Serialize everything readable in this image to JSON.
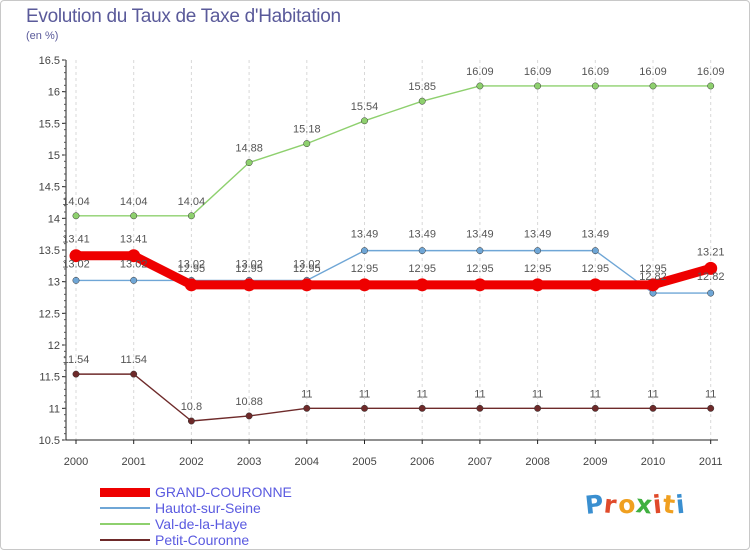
{
  "header": {
    "title": "Evolution du Taux de Taxe d'Habitation",
    "unit": "(en %)"
  },
  "logo": {
    "text": "Proxiti",
    "colors": [
      "#3a8fd0",
      "#e04a2a",
      "#f0a020",
      "#40b040",
      "#e04a2a",
      "#f0a020",
      "#3a8fd0"
    ]
  },
  "chart_data": {
    "type": "line",
    "x": [
      "2000",
      "2001",
      "2002",
      "2003",
      "2004",
      "2005",
      "2006",
      "2007",
      "2008",
      "2009",
      "2010",
      "2011"
    ],
    "ylim": [
      10.5,
      16.5
    ],
    "yticks": [
      "10.5",
      "11",
      "11.5",
      "12",
      "12.5",
      "13",
      "13.5",
      "14",
      "14.5",
      "15",
      "15.5",
      "16",
      "16.5"
    ],
    "grid": "vertical dashed",
    "legend_position": "bottom-left",
    "series": [
      {
        "name": "GRAND-COURONNE",
        "color": "#ee0000",
        "values": [
          13.41,
          13.41,
          12.95,
          12.95,
          12.95,
          12.95,
          12.95,
          12.95,
          12.95,
          12.95,
          12.95,
          13.21
        ],
        "labels": [
          "13.41",
          "13.41",
          "12.95",
          "12.95",
          "12.95",
          "12.95",
          "12.95",
          "12.95",
          "12.95",
          "12.95",
          "12.95",
          "13.21"
        ]
      },
      {
        "name": "Hautot-sur-Seine",
        "color": "#6fa6d6",
        "values": [
          13.02,
          13.02,
          13.02,
          13.02,
          13.02,
          13.49,
          13.49,
          13.49,
          13.49,
          13.49,
          12.82,
          12.82
        ],
        "labels": [
          "13.02",
          "13.02",
          "13.02",
          "13.02",
          "13.02",
          "13.49",
          "13.49",
          "13.49",
          "13.49",
          "13.49",
          "12.82",
          "12.82"
        ]
      },
      {
        "name": "Val-de-la-Haye",
        "color": "#8ed06e",
        "values": [
          14.04,
          14.04,
          14.04,
          14.88,
          15.18,
          15.54,
          15.85,
          16.09,
          16.09,
          16.09,
          16.09,
          16.09
        ],
        "labels": [
          "14.04",
          "14.04",
          "14.04",
          "14.88",
          "15.18",
          "15.54",
          "15.85",
          "16.09",
          "16.09",
          "16.09",
          "16.09",
          "16.09"
        ]
      },
      {
        "name": "Petit-Couronne",
        "color": "#6e2a2a",
        "values": [
          11.54,
          11.54,
          10.8,
          10.88,
          11,
          11,
          11,
          11,
          11,
          11,
          11,
          11
        ],
        "labels": [
          "11.54",
          "11.54",
          "10.8",
          "10.88",
          "11",
          "11",
          "11",
          "11",
          "11",
          "11",
          "11",
          "11"
        ]
      }
    ]
  }
}
